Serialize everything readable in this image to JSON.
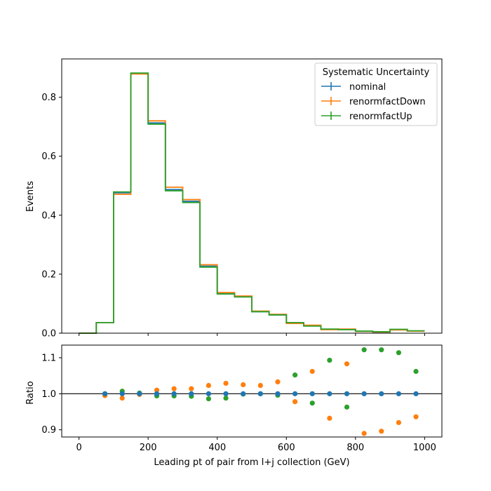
{
  "chart_data": [
    {
      "type": "line",
      "style": "step-histogram",
      "ylabel": "Events",
      "xlim": [
        -50,
        1050
      ],
      "ylim": [
        0,
        0.93
      ],
      "xticks": [
        0,
        200,
        400,
        600,
        800,
        1000
      ],
      "xtick_labels_visible": false,
      "yticks": [
        "0.0",
        "0.2",
        "0.4",
        "0.6",
        "0.8"
      ],
      "bin_edges": [
        0,
        50,
        100,
        150,
        200,
        250,
        300,
        350,
        400,
        450,
        500,
        550,
        600,
        650,
        700,
        750,
        800,
        850,
        900,
        950,
        1000
      ],
      "series": [
        {
          "name": "nominal",
          "color": "#1f77b4",
          "values": [
            0.0,
            0.036,
            0.476,
            0.88,
            0.713,
            0.487,
            0.447,
            0.227,
            0.134,
            0.123,
            0.073,
            0.062,
            0.034,
            0.025,
            0.013,
            0.013,
            0.006,
            0.004,
            0.012,
            0.007
          ]
        },
        {
          "name": "renormfactDown",
          "color": "#ff7f0e",
          "values": [
            0.0,
            0.036,
            0.471,
            0.879,
            0.72,
            0.495,
            0.453,
            0.232,
            0.138,
            0.126,
            0.075,
            0.064,
            0.033,
            0.027,
            0.012,
            0.014,
            0.006,
            0.004,
            0.011,
            0.007
          ]
        },
        {
          "name": "renormfactUp",
          "color": "#2ca02c",
          "values": [
            0.0,
            0.036,
            0.479,
            0.882,
            0.709,
            0.483,
            0.443,
            0.224,
            0.133,
            0.123,
            0.073,
            0.062,
            0.036,
            0.024,
            0.014,
            0.012,
            0.007,
            0.005,
            0.013,
            0.008
          ]
        }
      ],
      "legend": {
        "title": "Systematic Uncertainty",
        "placement": "upper-right"
      }
    },
    {
      "type": "scatter",
      "xlabel": "Leading pt of pair from l+j collection (GeV)",
      "ylabel": "Ratio",
      "xlim": [
        -50,
        1050
      ],
      "ylim": [
        0.88,
        1.135
      ],
      "xticks": [
        0,
        200,
        400,
        600,
        800,
        1000
      ],
      "xtick_labels": [
        "0",
        "200",
        "400",
        "600",
        "800",
        "1000"
      ],
      "yticks": [
        "0.9",
        "1.0",
        "1.1"
      ],
      "reference_line": 1.0,
      "x": [
        75,
        125,
        175,
        225,
        275,
        325,
        375,
        425,
        475,
        525,
        575,
        625,
        675,
        725,
        775,
        825,
        875,
        925,
        975
      ],
      "series": [
        {
          "name": "renormfactDown",
          "color": "#ff7f0e",
          "values": [
            0.995,
            0.988,
            0.998,
            1.01,
            1.014,
            1.014,
            1.023,
            1.029,
            1.025,
            1.023,
            1.033,
            0.978,
            1.062,
            0.932,
            1.083,
            0.89,
            0.896,
            0.92,
            0.936
          ]
        },
        {
          "name": "renormfactUp",
          "color": "#2ca02c",
          "values": [
            1.0,
            1.007,
            1.002,
            0.994,
            0.994,
            0.993,
            0.986,
            0.988,
            0.999,
            1.0,
            0.996,
            1.052,
            0.974,
            1.093,
            0.963,
            1.122,
            1.122,
            1.114,
            1.062
          ]
        },
        {
          "name": "nominal",
          "color": "#1f77b4",
          "values": [
            1.0,
            1.0,
            1.0,
            1.0,
            1.0,
            1.0,
            1.0,
            1.0,
            1.0,
            1.0,
            1.0,
            1.0,
            1.0,
            1.0,
            1.0,
            1.0,
            1.0,
            1.0,
            1.0
          ]
        }
      ]
    }
  ]
}
